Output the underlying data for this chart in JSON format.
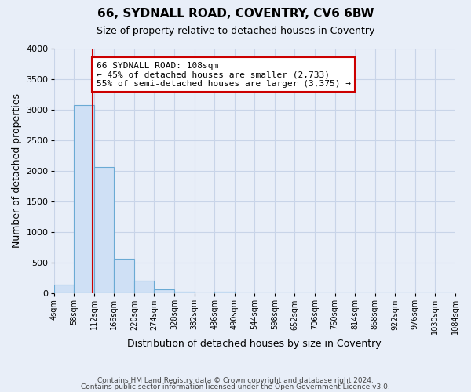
{
  "title": "66, SYDNALL ROAD, COVENTRY, CV6 6BW",
  "subtitle": "Size of property relative to detached houses in Coventry",
  "xlabel": "Distribution of detached houses by size in Coventry",
  "ylabel": "Number of detached properties",
  "bar_color": "#cfe0f5",
  "bar_edge_color": "#6aaad4",
  "bin_edges": [
    4,
    58,
    112,
    166,
    220,
    274,
    328,
    382,
    436,
    490,
    544,
    598,
    652,
    706,
    760,
    814,
    868,
    922,
    976,
    1030,
    1084
  ],
  "bar_heights": [
    150,
    3070,
    2060,
    570,
    205,
    65,
    35,
    0,
    35,
    0,
    0,
    0,
    0,
    0,
    0,
    0,
    0,
    0,
    0,
    0
  ],
  "red_line_x": 108,
  "annotation_title": "66 SYDNALL ROAD: 108sqm",
  "annotation_line1": "← 45% of detached houses are smaller (2,733)",
  "annotation_line2": "55% of semi-detached houses are larger (3,375) →",
  "annotation_box_color": "white",
  "annotation_box_edgecolor": "#cc0000",
  "red_line_color": "#cc0000",
  "ylim": [
    0,
    4000
  ],
  "yticks": [
    0,
    500,
    1000,
    1500,
    2000,
    2500,
    3000,
    3500,
    4000
  ],
  "tick_labels": [
    "4sqm",
    "58sqm",
    "112sqm",
    "166sqm",
    "220sqm",
    "274sqm",
    "328sqm",
    "382sqm",
    "436sqm",
    "490sqm",
    "544sqm",
    "598sqm",
    "652sqm",
    "706sqm",
    "760sqm",
    "814sqm",
    "868sqm",
    "922sqm",
    "976sqm",
    "1030sqm",
    "1084sqm"
  ],
  "background_color": "#e8eef8",
  "grid_color": "#d0d8e8",
  "footer_line1": "Contains HM Land Registry data © Crown copyright and database right 2024.",
  "footer_line2": "Contains public sector information licensed under the Open Government Licence v3.0."
}
